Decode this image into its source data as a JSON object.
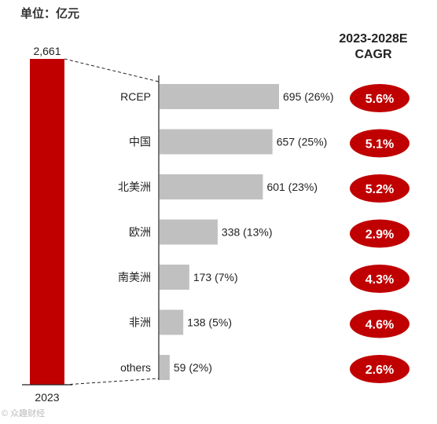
{
  "unit_label": "单位：亿元",
  "cagr_title": [
    "2023-2028E",
    "CAGR"
  ],
  "watermark": "© 众趣财经",
  "chart_data": {
    "type": "bar",
    "total": {
      "category": "2023",
      "value": 2661,
      "label": "2,661"
    },
    "categories": [
      "RCEP",
      "中国",
      "北美洲",
      "欧洲",
      "南美洲",
      "非洲",
      "others"
    ],
    "values": [
      695,
      657,
      601,
      338,
      173,
      138,
      59
    ],
    "value_labels": [
      "695 (26%)",
      "657 (25%)",
      "601 (23%)",
      "338 (13%)",
      "173 (7%)",
      "138 (5%)",
      "59 (2%)"
    ],
    "cagr": [
      "5.6%",
      "5.1%",
      "5.2%",
      "2.9%",
      "4.3%",
      "4.6%",
      "2.6%"
    ],
    "colors": {
      "total_bar": "#c00000",
      "breakdown_bar": "#c0c0c0",
      "cagr_ellipse": "#c00000"
    },
    "grid": false,
    "legend": "none"
  }
}
